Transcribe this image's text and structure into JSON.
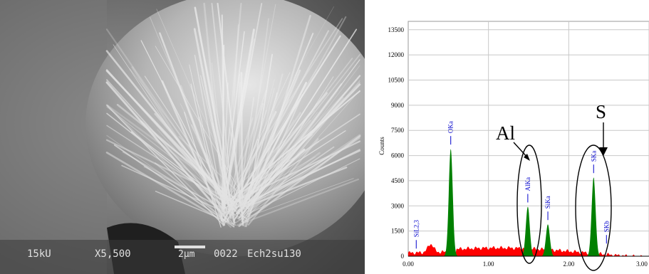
{
  "sem": {
    "voltage": "15kU",
    "magnification": "X5,500",
    "scale_bar": "2μm",
    "image_number": "0022",
    "sample_id": "Ech2su130"
  },
  "annotations": {
    "al_label": "Al",
    "s_label": "S"
  },
  "chart_data": {
    "type": "area",
    "xlabel": "",
    "ylabel": "Counts",
    "xlim": [
      0.0,
      3.0
    ],
    "ylim": [
      0,
      14000
    ],
    "x_ticks": [
      "0.00",
      "1.00",
      "2.00",
      "3.00"
    ],
    "y_ticks": [
      "0",
      "1500",
      "3000",
      "4500",
      "6000",
      "7500",
      "9000",
      "10500",
      "12000",
      "13500"
    ],
    "grid": true,
    "peaks": [
      {
        "label": "OKa",
        "x": 0.53,
        "counts": 6400
      },
      {
        "label": "AlKa",
        "x": 1.49,
        "counts": 2950
      },
      {
        "label": "SiKa",
        "x": 1.74,
        "counts": 1900
      },
      {
        "label": "SKa",
        "x": 2.31,
        "counts": 4700
      },
      {
        "label": "SKb",
        "x": 2.47,
        "counts": 500
      },
      {
        "label": "SiL2,3",
        "x": 0.1,
        "counts": 200
      }
    ],
    "colors": {
      "background_spectrum": "#ff0000",
      "peak_fill": "#008000",
      "peak_label": "#0000cc"
    }
  }
}
